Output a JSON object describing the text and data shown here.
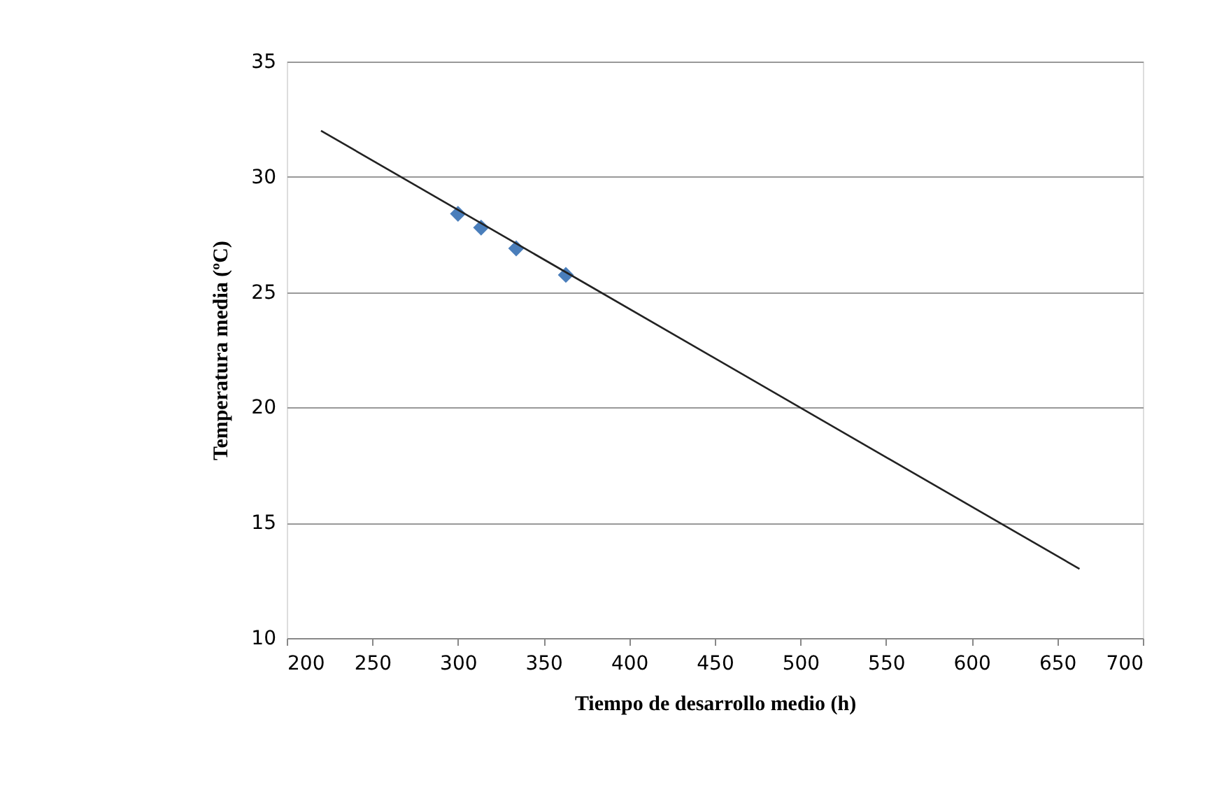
{
  "chart_data": {
    "type": "scatter",
    "xlabel": "Tiempo de desarrollo medio (h)",
    "ylabel": "Temperatura media (ºC)",
    "xlim": [
      200,
      700
    ],
    "xticks": [
      200,
      250,
      300,
      350,
      400,
      450,
      500,
      550,
      600,
      650,
      700
    ],
    "ylim": [
      10,
      35
    ],
    "yticks": [
      10,
      15,
      20,
      25,
      30,
      35
    ],
    "grid": "y",
    "marker": "diamond",
    "series": [
      {
        "color": "#4a7ebb",
        "x": [
          300,
          313.5,
          334,
          363
        ],
        "values": [
          28.4,
          27.8,
          26.9,
          25.75
        ]
      },
      {
        "type": "line",
        "color": "#222222",
        "marker": "none",
        "line_style": "solid",
        "x": [
          220,
          663
        ],
        "values": [
          32.0,
          13.0
        ]
      }
    ]
  }
}
